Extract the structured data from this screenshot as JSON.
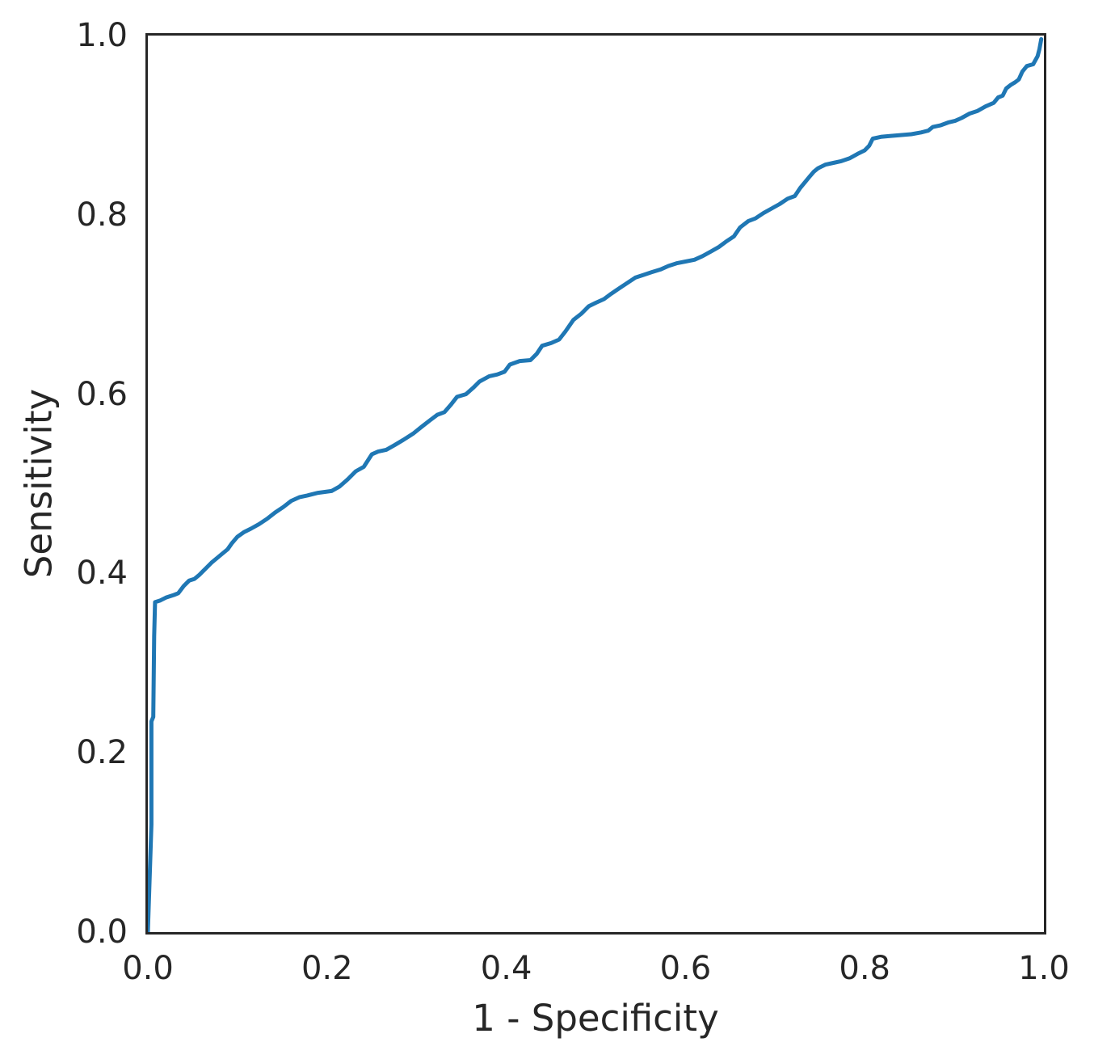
{
  "chart_data": {
    "type": "line",
    "title": "",
    "xlabel": "1 - Specificity",
    "ylabel": "Sensitivity",
    "xlim": [
      0.0,
      1.0
    ],
    "ylim": [
      0.0,
      1.0
    ],
    "x_ticks": [
      0.0,
      0.2,
      0.4,
      0.6,
      0.8,
      1.0
    ],
    "y_ticks": [
      0.0,
      0.2,
      0.4,
      0.6,
      0.8,
      1.0
    ],
    "grid": false,
    "legend": "none",
    "line_color": "#1f77b4",
    "spine_color": "#262626",
    "text_color": "#262626",
    "background_color": "#ffffff",
    "series": [
      {
        "name": "roc-curve",
        "color": "#1f77b4",
        "points": [
          [
            0.0,
            0.0
          ],
          [
            0.004,
            0.12
          ],
          [
            0.004,
            0.235
          ],
          [
            0.006,
            0.24
          ],
          [
            0.007,
            0.33
          ],
          [
            0.008,
            0.368
          ],
          [
            0.014,
            0.37
          ],
          [
            0.02,
            0.373
          ],
          [
            0.029,
            0.376
          ],
          [
            0.034,
            0.378
          ],
          [
            0.04,
            0.386
          ],
          [
            0.046,
            0.392
          ],
          [
            0.052,
            0.394
          ],
          [
            0.057,
            0.398
          ],
          [
            0.061,
            0.402
          ],
          [
            0.066,
            0.407
          ],
          [
            0.071,
            0.412
          ],
          [
            0.077,
            0.417
          ],
          [
            0.083,
            0.422
          ],
          [
            0.089,
            0.427
          ],
          [
            0.094,
            0.434
          ],
          [
            0.1,
            0.441
          ],
          [
            0.107,
            0.446
          ],
          [
            0.115,
            0.45
          ],
          [
            0.124,
            0.455
          ],
          [
            0.133,
            0.461
          ],
          [
            0.142,
            0.468
          ],
          [
            0.151,
            0.474
          ],
          [
            0.16,
            0.481
          ],
          [
            0.169,
            0.485
          ],
          [
            0.178,
            0.487
          ],
          [
            0.19,
            0.49
          ],
          [
            0.205,
            0.492
          ],
          [
            0.214,
            0.497
          ],
          [
            0.223,
            0.505
          ],
          [
            0.232,
            0.514
          ],
          [
            0.241,
            0.519
          ],
          [
            0.25,
            0.533
          ],
          [
            0.257,
            0.536
          ],
          [
            0.266,
            0.538
          ],
          [
            0.275,
            0.543
          ],
          [
            0.285,
            0.549
          ],
          [
            0.296,
            0.556
          ],
          [
            0.306,
            0.564
          ],
          [
            0.315,
            0.571
          ],
          [
            0.323,
            0.577
          ],
          [
            0.331,
            0.58
          ],
          [
            0.338,
            0.588
          ],
          [
            0.345,
            0.597
          ],
          [
            0.355,
            0.6
          ],
          [
            0.363,
            0.607
          ],
          [
            0.37,
            0.614
          ],
          [
            0.381,
            0.62
          ],
          [
            0.39,
            0.622
          ],
          [
            0.398,
            0.625
          ],
          [
            0.404,
            0.633
          ],
          [
            0.415,
            0.637
          ],
          [
            0.427,
            0.638
          ],
          [
            0.434,
            0.645
          ],
          [
            0.44,
            0.654
          ],
          [
            0.45,
            0.657
          ],
          [
            0.459,
            0.661
          ],
          [
            0.466,
            0.67
          ],
          [
            0.475,
            0.683
          ],
          [
            0.484,
            0.69
          ],
          [
            0.492,
            0.698
          ],
          [
            0.5,
            0.702
          ],
          [
            0.509,
            0.706
          ],
          [
            0.517,
            0.712
          ],
          [
            0.526,
            0.718
          ],
          [
            0.535,
            0.724
          ],
          [
            0.544,
            0.73
          ],
          [
            0.553,
            0.733
          ],
          [
            0.562,
            0.736
          ],
          [
            0.572,
            0.739
          ],
          [
            0.581,
            0.743
          ],
          [
            0.59,
            0.746
          ],
          [
            0.6,
            0.748
          ],
          [
            0.61,
            0.75
          ],
          [
            0.619,
            0.754
          ],
          [
            0.628,
            0.759
          ],
          [
            0.637,
            0.764
          ],
          [
            0.645,
            0.77
          ],
          [
            0.654,
            0.776
          ],
          [
            0.661,
            0.786
          ],
          [
            0.67,
            0.793
          ],
          [
            0.678,
            0.796
          ],
          [
            0.687,
            0.802
          ],
          [
            0.696,
            0.807
          ],
          [
            0.705,
            0.812
          ],
          [
            0.714,
            0.818
          ],
          [
            0.722,
            0.821
          ],
          [
            0.728,
            0.83
          ],
          [
            0.733,
            0.836
          ],
          [
            0.738,
            0.842
          ],
          [
            0.743,
            0.848
          ],
          [
            0.748,
            0.852
          ],
          [
            0.756,
            0.856
          ],
          [
            0.765,
            0.858
          ],
          [
            0.774,
            0.86
          ],
          [
            0.783,
            0.863
          ],
          [
            0.792,
            0.868
          ],
          [
            0.8,
            0.872
          ],
          [
            0.805,
            0.877
          ],
          [
            0.809,
            0.885
          ],
          [
            0.818,
            0.887
          ],
          [
            0.828,
            0.888
          ],
          [
            0.84,
            0.889
          ],
          [
            0.852,
            0.89
          ],
          [
            0.863,
            0.892
          ],
          [
            0.871,
            0.894
          ],
          [
            0.876,
            0.898
          ],
          [
            0.885,
            0.9
          ],
          [
            0.893,
            0.903
          ],
          [
            0.901,
            0.905
          ],
          [
            0.908,
            0.908
          ],
          [
            0.917,
            0.913
          ],
          [
            0.926,
            0.916
          ],
          [
            0.935,
            0.921
          ],
          [
            0.944,
            0.925
          ],
          [
            0.949,
            0.931
          ],
          [
            0.954,
            0.933
          ],
          [
            0.958,
            0.941
          ],
          [
            0.963,
            0.945
          ],
          [
            0.968,
            0.948
          ],
          [
            0.972,
            0.951
          ],
          [
            0.976,
            0.96
          ],
          [
            0.981,
            0.966
          ],
          [
            0.988,
            0.968
          ],
          [
            0.993,
            0.977
          ],
          [
            0.995,
            0.985
          ],
          [
            0.997,
            0.996
          ]
        ]
      }
    ]
  }
}
